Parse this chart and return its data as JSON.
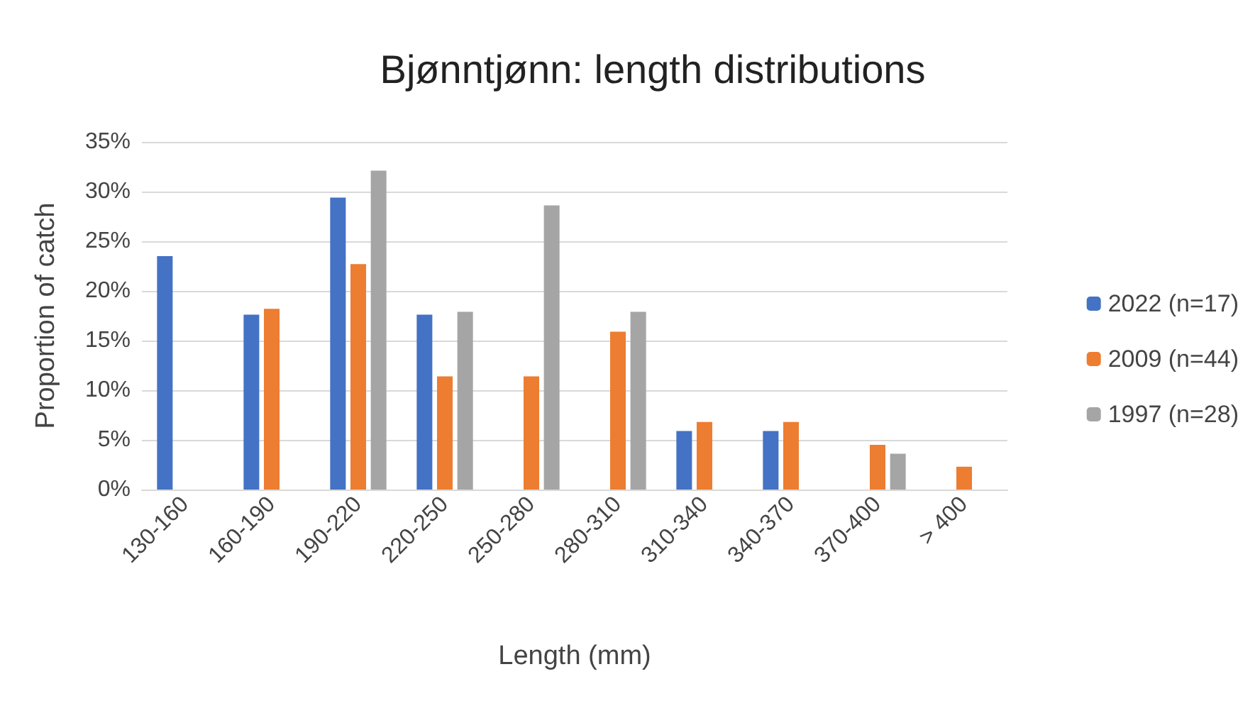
{
  "chart_data": {
    "type": "bar",
    "title": "Bjønntjønn: length distributions",
    "xlabel": "Length (mm)",
    "ylabel": "Proportion of catch",
    "categories": [
      "130-160",
      "160-190",
      "190-220",
      "220-250",
      "250-280",
      "280-310",
      "310-340",
      "340-370",
      "370-400",
      "> 400"
    ],
    "series": [
      {
        "name": "2022 (n=17)",
        "color": "#4472c4",
        "values": [
          23.5,
          17.6,
          29.4,
          17.6,
          0,
          0,
          5.9,
          5.9,
          0,
          0
        ]
      },
      {
        "name": "2009 (n=44)",
        "color": "#ed7d31",
        "values": [
          0,
          18.2,
          22.7,
          11.4,
          11.4,
          15.9,
          6.8,
          6.8,
          4.5,
          2.3
        ]
      },
      {
        "name": "1997 (n=28)",
        "color": "#a5a5a5",
        "values": [
          0,
          0,
          32.1,
          17.9,
          28.6,
          17.9,
          0,
          0,
          3.6,
          0
        ]
      }
    ],
    "ylim": [
      0,
      35
    ],
    "yticks": [
      {
        "value": 0,
        "label": "0%"
      },
      {
        "value": 5,
        "label": "5%"
      },
      {
        "value": 10,
        "label": "10%"
      },
      {
        "value": 15,
        "label": "15%"
      },
      {
        "value": 20,
        "label": "20%"
      },
      {
        "value": 25,
        "label": "25%"
      },
      {
        "value": 30,
        "label": "30%"
      },
      {
        "value": 35,
        "label": "35%"
      }
    ],
    "grid": "y",
    "legend": "right"
  }
}
